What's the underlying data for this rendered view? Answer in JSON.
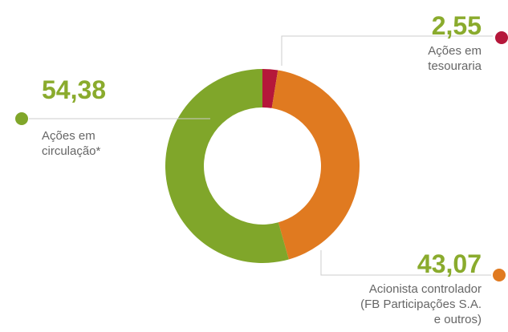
{
  "chart_data": {
    "type": "pie",
    "donut": true,
    "categories": [
      "Ações em tesouraria",
      "Acionista controlador (FB Participações S.A. e outros)",
      "Ações em circulação*"
    ],
    "values": [
      2.55,
      43.07,
      54.38
    ],
    "value_labels": [
      "2,55",
      "43,07",
      "54,38"
    ],
    "colors": [
      "#b5173a",
      "#e07a20",
      "#80a62a"
    ]
  }
}
